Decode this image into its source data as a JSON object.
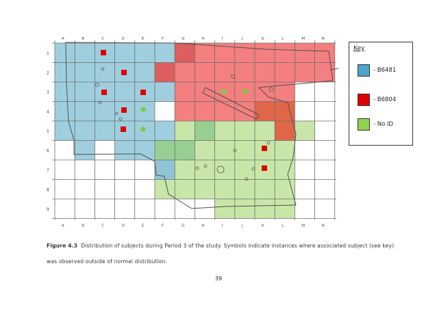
{
  "map": {
    "columns": [
      "A",
      "B",
      "C",
      "D",
      "E",
      "F",
      "G",
      "H",
      "I",
      "J",
      "K",
      "L",
      "M",
      "N"
    ],
    "rows": [
      "1",
      "2",
      "3",
      "4",
      "5",
      "6",
      "7",
      "8",
      "9"
    ],
    "colors": {
      "blue": "#9fcfdf",
      "red": "#f47f7f",
      "green": "#c8e6a8",
      "dark_red": "#dc5e5e",
      "dark_green": "#97cf92",
      "dark_blue": "#8fc4d6",
      "orange": "#e0664a",
      "marker_red": "#e00000",
      "marker_green": "#82c945"
    }
  },
  "key": {
    "title": "Key",
    "items": [
      {
        "label": "- B6481",
        "color": "#4aa6cc"
      },
      {
        "label": "- B6804",
        "color": "#e00000"
      },
      {
        "label": "- No ID",
        "color": "#90d050"
      }
    ]
  },
  "caption": {
    "label": "Figure 4.3",
    "text": "Distribution of subjects during Period 3 of the study. Symbols indicate instances where associated subject (see key) was observed outside of normal distribution."
  },
  "page_number": "39"
}
